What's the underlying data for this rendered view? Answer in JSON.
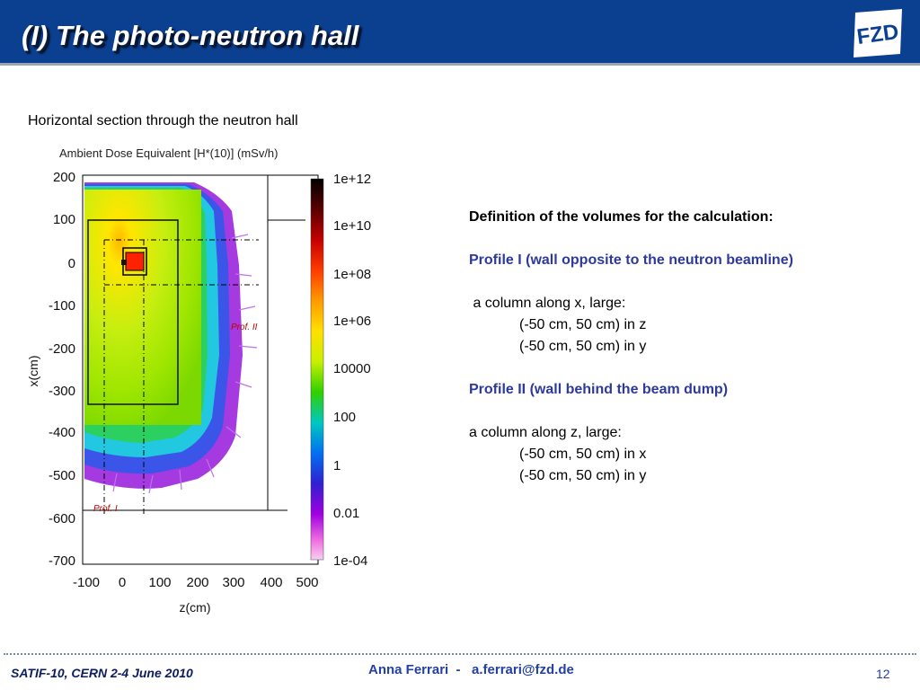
{
  "header": {
    "title": "(I)  The photo-neutron hall",
    "logo_text": "FZD",
    "bg_color": "#0b3f8f"
  },
  "subtitle": "Horizontal section through the neutron hall",
  "plot": {
    "title": "Ambient Dose Equivalent [H*(10)] (mSv/h)",
    "xlabel": "z(cm)",
    "ylabel": "x(cm)",
    "x_ticks": [
      "-100",
      "0",
      "100",
      "200",
      "300",
      "400",
      "500"
    ],
    "y_ticks": [
      "200",
      "100",
      "0",
      "-100",
      "-200",
      "-300",
      "-400",
      "-500",
      "-600",
      "-700"
    ],
    "colorbar_ticks": [
      "1e+12",
      "1e+10",
      "1e+08",
      "1e+06",
      "10000",
      "100",
      "1",
      "0.01",
      "1e-04"
    ],
    "profile_labels": {
      "prof1": "Prof. I",
      "prof2": "Prof. II"
    }
  },
  "chart_data": {
    "type": "heatmap",
    "title": "Ambient Dose Equivalent [H*(10)] (mSv/h)",
    "xlabel": "z(cm)",
    "ylabel": "x(cm)",
    "xlim": [
      -100,
      500
    ],
    "ylim": [
      -700,
      200
    ],
    "colorbar_range": [
      0.0001,
      1000000000000
    ],
    "colorbar_scale": "log"
  },
  "right": {
    "heading": "Definition of the volumes for the calculation:",
    "profile1_title": "Profile I (wall opposite to the neutron beamline)",
    "profile1_line": " a column along x, large:",
    "profile1_z": "(-50 cm, 50 cm) in z",
    "profile1_y": "(-50 cm, 50 cm) in y",
    "profile2_title": "Profile II (wall behind the beam dump)",
    "profile2_line": "a column along z, large:",
    "profile2_x": "(-50 cm, 50 cm) in x",
    "profile2_y": "(-50 cm, 50 cm) in y"
  },
  "footer": {
    "left": "SATIF-10, CERN  2-4 June 2010",
    "middle": "Anna Ferrari  -   a.ferrari@fzd.de",
    "page": "12"
  }
}
